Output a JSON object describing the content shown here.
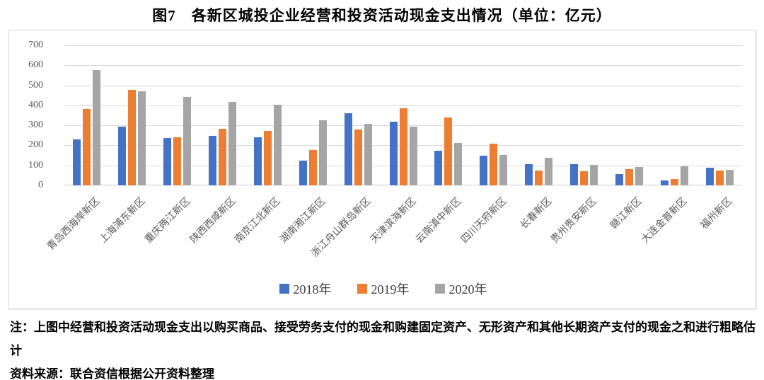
{
  "title": "图7　各新区城投企业经营和投资活动现金支出情况（单位：亿元）",
  "chart_data": {
    "type": "bar",
    "title": "图7　各新区城投企业经营和投资活动现金支出情况（单位：亿元）",
    "unit": "亿元",
    "categories": [
      "青岛西海岸新区",
      "上海浦东新区",
      "重庆两江新区",
      "陕西西咸新区",
      "南京江北新区",
      "湖南湘江新区",
      "浙江舟山群岛新区",
      "天津滨海新区",
      "云南滇中新区",
      "四川天府新区",
      "长春新区",
      "贵州贵安新区",
      "赣江新区",
      "大连金普新区",
      "福州新区"
    ],
    "series": [
      {
        "name": "2018年",
        "color": "#4472C4",
        "values": [
          230,
          292,
          236,
          249,
          242,
          124,
          362,
          319,
          175,
          147,
          106,
          105,
          56,
          26,
          89
        ]
      },
      {
        "name": "2019年",
        "color": "#ED7D31",
        "values": [
          383,
          478,
          239,
          283,
          273,
          178,
          280,
          386,
          340,
          207,
          74,
          72,
          80,
          33,
          73
        ]
      },
      {
        "name": "2020年",
        "color": "#A5A5A5",
        "values": [
          575,
          470,
          442,
          418,
          403,
          325,
          308,
          293,
          212,
          151,
          138,
          103,
          93,
          94,
          78
        ]
      }
    ],
    "ylim": [
      0,
      700
    ],
    "ytick_step": 100,
    "yticks": [
      700,
      600,
      500,
      400,
      300,
      200,
      100,
      0
    ],
    "grid": true,
    "legend_position": "bottom",
    "xlabel": "",
    "ylabel": ""
  },
  "notes": {
    "note": "注：上图中经营和投资活动现金支出以购买商品、接受劳务支付的现金和购建固定资产、无形资产和其他长期资产支付的现金之和进行粗略估计",
    "source": "资料来源：联合资信根据公开资料整理"
  }
}
